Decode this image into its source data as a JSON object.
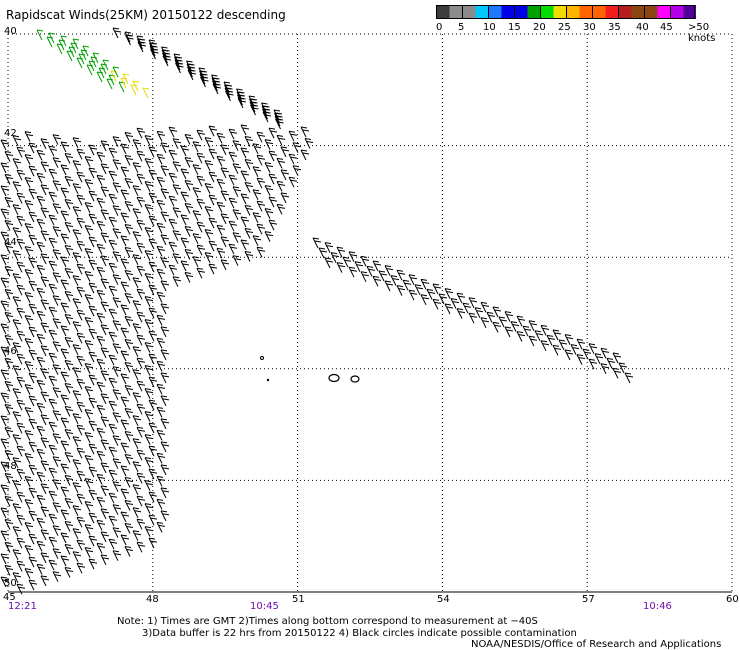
{
  "header": {
    "title": "Rapidscat Winds(25KM) 20150122 descending"
  },
  "color_scale": {
    "colors": [
      "#3c3c3c",
      "#8c8c8c",
      "#00c8ff",
      "#1e78ff",
      "#0000e6",
      "#00a000",
      "#00dc00",
      "#f0dc00",
      "#ffb400",
      "#ff6400",
      "#f01e1e",
      "#b41e1e",
      "#8c4614",
      "#ff00ff",
      "#b400e6",
      "#500096"
    ],
    "labels": [
      "0",
      "5",
      "10",
      "15",
      "20",
      "25",
      "30",
      "35",
      "40",
      "45",
      ">50 knots"
    ]
  },
  "map": {
    "lon_labels": [
      "45",
      "48",
      "51",
      "54",
      "57",
      "60"
    ],
    "lat_labels": [
      "40",
      "42",
      "44",
      "46",
      "48",
      "50"
    ],
    "times": [
      "12:21",
      "10:45",
      "10:46"
    ]
  },
  "notes": {
    "line1": "Note: 1) Times are GMT 2)Times along bottom correspond to measurement at −40S",
    "line2": "3)Data buffer is 22 hrs from 20150122 4) Black circles indicate possible contamination",
    "line3": "NOAA/NESDIS/Office of Research and Applications"
  },
  "chart_data": {
    "type": "wind_barb_map",
    "lon_range": [
      45,
      60
    ],
    "lat_range": [
      40,
      50
    ],
    "grid_lon": [
      48,
      51,
      54,
      57
    ],
    "grid_lat": [
      42,
      44,
      46,
      48
    ]
  }
}
